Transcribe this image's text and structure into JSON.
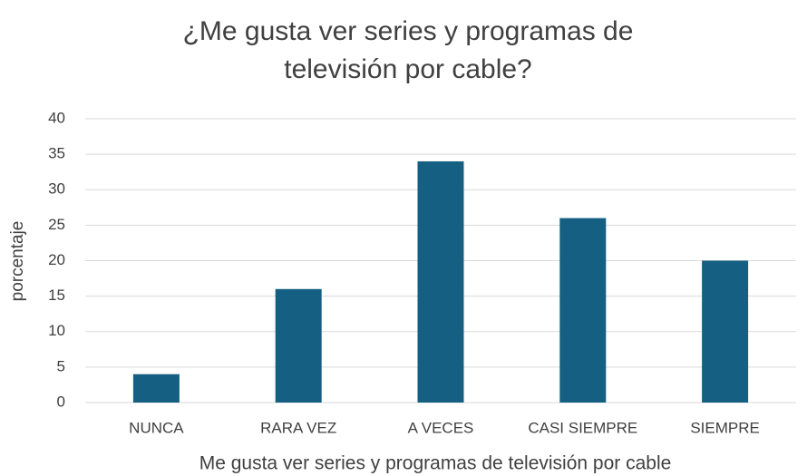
{
  "chart_data": {
    "type": "bar",
    "title": "¿Me gusta ver series y programas de televisión por cable?",
    "categories": [
      "NUNCA",
      "RARA VEZ",
      "A VECES",
      "CASI SIEMPRE",
      "SIEMPRE"
    ],
    "values": [
      4,
      16,
      34,
      26,
      20
    ],
    "color": "#156082",
    "ylim": [
      0,
      40
    ],
    "yticks": [
      0,
      5,
      10,
      15,
      20,
      25,
      30,
      35,
      40
    ],
    "grid": true,
    "xlabel": "Me gusta ver series y programas de televisión por cable",
    "ylabel": "porcentaje"
  }
}
